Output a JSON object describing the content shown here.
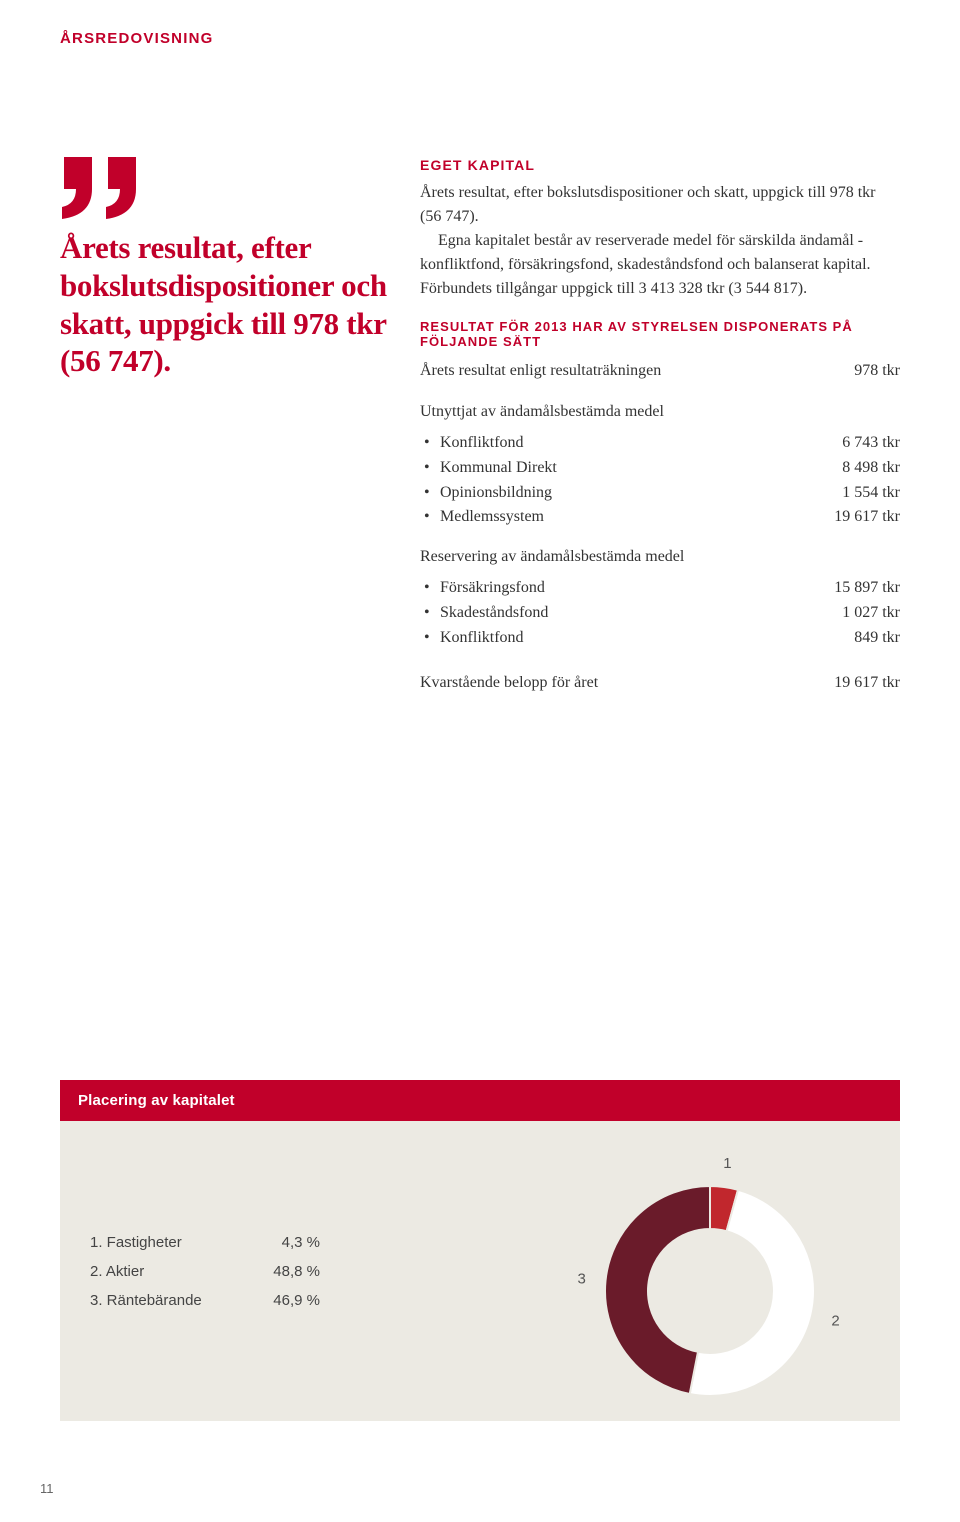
{
  "header": "ÅRSREDOVISNING",
  "quote": "Årets resultat, efter boksluts-dispositioner och skatt, uppgick till 978 tkr (56 747).",
  "section1_label": "EGET KAPITAL",
  "para1": "Årets resultat, efter bokslutsdispositioner och skatt, uppgick till 978 tkr (56 747).",
  "para2": "Egna kapitalet består av reserverade medel för särskilda ändamål - konfliktfond, försäkringsfond, skadeståndsfond och balanserat kapital. Förbundets tillgångar uppgick till 3 413 328 tkr (3 544 817).",
  "section2_label": "RESULTAT FÖR 2013 HAR AV STYRELSEN DISPONERATS PÅ FÖLJANDE SÄTT",
  "result_row": {
    "label": "Årets resultat enligt resultaträkningen",
    "value": "978 tkr"
  },
  "sub1": "Utnyttjat av ändamålsbestämda medel",
  "list1": [
    {
      "label": "Konfliktfond",
      "value": "6 743 tkr"
    },
    {
      "label": "Kommunal Direkt",
      "value": "8 498 tkr"
    },
    {
      "label": "Opinionsbildning",
      "value": "1 554 tkr"
    },
    {
      "label": "Medlemssystem",
      "value": "19 617 tkr"
    }
  ],
  "sub2": "Reservering av ändamålsbestämda medel",
  "list2": [
    {
      "label": "Försäkringsfond",
      "value": "15 897 tkr"
    },
    {
      "label": "Skadeståndsfond",
      "value": "1 027 tkr"
    },
    {
      "label": "Konfliktfond",
      "value": "849 tkr"
    }
  ],
  "final_row": {
    "label": "Kvarstående belopp för året",
    "value": "19 617 tkr"
  },
  "chart": {
    "title": "Placering av kapitalet",
    "legend": [
      {
        "num": "1.",
        "name": "Fastigheter",
        "pct": "4,3 %"
      },
      {
        "num": "2.",
        "name": "Aktier",
        "pct": "48,8 %"
      },
      {
        "num": "3.",
        "name": "Räntebärande",
        "pct": "46,9 %"
      }
    ],
    "slices": [
      {
        "value": 4.3,
        "color": "#c1272d"
      },
      {
        "value": 48.8,
        "color": "#ffffff"
      },
      {
        "value": 46.9,
        "color": "#6a1b2a"
      }
    ],
    "stroke": "#eceae3",
    "labels": [
      "1",
      "2",
      "3"
    ]
  },
  "page_number": "11",
  "quote_color": "#c1002a"
}
